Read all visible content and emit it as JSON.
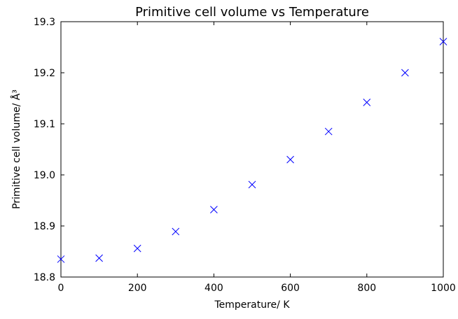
{
  "chart_data": {
    "type": "scatter",
    "title": "Primitive cell volume vs Temperature",
    "xlabel": "Temperature/ K",
    "ylabel": "Primitive cell volume/ Å³",
    "xlim": [
      0,
      1000
    ],
    "ylim": [
      18.8,
      19.3
    ],
    "xticks": [
      "0",
      "200",
      "400",
      "600",
      "800",
      "1000"
    ],
    "yticks": [
      "18.8",
      "18.9",
      "19.0",
      "19.1",
      "19.2",
      "19.3"
    ],
    "grid": false,
    "marker": "x",
    "marker_color": "#0000ff",
    "series": [
      {
        "x": [
          0,
          100,
          200,
          300,
          400,
          500,
          600,
          700,
          800,
          900,
          1000
        ],
        "y": [
          18.835,
          18.837,
          18.856,
          18.889,
          18.932,
          18.981,
          19.03,
          19.085,
          19.142,
          19.2,
          19.261
        ]
      }
    ]
  }
}
